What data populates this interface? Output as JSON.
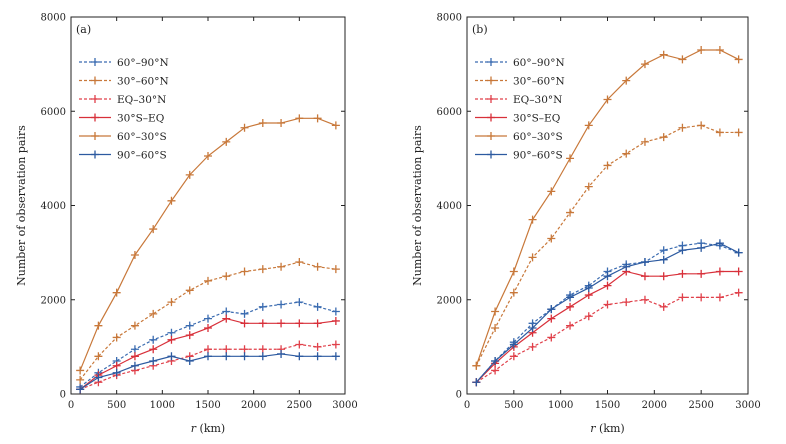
{
  "chart_data": [
    {
      "type": "line",
      "panel_label": "(a)",
      "xlabel_var": "r",
      "xlabel_unit": "(km)",
      "ylabel": "Number of observation pairs",
      "xlim": [
        0,
        3000
      ],
      "ylim": [
        0,
        8000
      ],
      "xticks": [
        0,
        500,
        1000,
        1500,
        2000,
        2500,
        3000
      ],
      "yticks": [
        0,
        2000,
        4000,
        6000,
        8000
      ],
      "x": [
        100,
        300,
        500,
        700,
        900,
        1100,
        1300,
        1500,
        1700,
        1900,
        2100,
        2300,
        2500,
        2700,
        2900
      ],
      "legend_position": "top-left",
      "series": [
        {
          "name": "60°–90°N",
          "color": "#3a6bb0",
          "dash": "dashed",
          "values": [
            150,
            450,
            700,
            950,
            1150,
            1300,
            1450,
            1600,
            1750,
            1700,
            1850,
            1900,
            1950,
            1850,
            1750
          ]
        },
        {
          "name": "30°–60°N",
          "color": "#c8783a",
          "dash": "dashed",
          "values": [
            300,
            800,
            1200,
            1450,
            1700,
            1950,
            2200,
            2400,
            2500,
            2600,
            2650,
            2700,
            2800,
            2700,
            2650
          ]
        },
        {
          "name": "EQ–30°N",
          "color": "#e0404a",
          "dash": "dashed",
          "values": [
            100,
            250,
            400,
            500,
            600,
            700,
            800,
            950,
            950,
            950,
            950,
            950,
            1050,
            1000,
            1050
          ]
        },
        {
          "name": "30°S–EQ",
          "color": "#d8303a",
          "dash": "solid",
          "values": [
            100,
            400,
            600,
            800,
            950,
            1150,
            1250,
            1400,
            1600,
            1500,
            1500,
            1500,
            1500,
            1500,
            1550
          ]
        },
        {
          "name": "60°–30°S",
          "color": "#c8783a",
          "dash": "solid",
          "values": [
            500,
            1450,
            2150,
            2950,
            3500,
            4100,
            4650,
            5050,
            5350,
            5650,
            5750,
            5750,
            5850,
            5850,
            5700
          ]
        },
        {
          "name": "90°–60°S",
          "color": "#2c5aa0",
          "dash": "solid",
          "values": [
            100,
            350,
            450,
            600,
            700,
            800,
            700,
            800,
            800,
            800,
            800,
            850,
            800,
            800,
            800
          ]
        }
      ]
    },
    {
      "type": "line",
      "panel_label": "(b)",
      "xlabel_var": "r",
      "xlabel_unit": "(km)",
      "ylabel": "Number of observation pairs",
      "xlim": [
        0,
        3000
      ],
      "ylim": [
        0,
        8000
      ],
      "xticks": [
        0,
        500,
        1000,
        1500,
        2000,
        2500,
        3000
      ],
      "yticks": [
        0,
        2000,
        4000,
        6000,
        8000
      ],
      "x": [
        100,
        300,
        500,
        700,
        900,
        1100,
        1300,
        1500,
        1700,
        1900,
        2100,
        2300,
        2500,
        2700,
        2900
      ],
      "legend_position": "top-left",
      "series": [
        {
          "name": "60°–90°N",
          "color": "#3a6bb0",
          "dash": "dashed",
          "values": [
            250,
            700,
            1100,
            1500,
            1800,
            2100,
            2300,
            2600,
            2750,
            2800,
            3050,
            3150,
            3200,
            3150,
            3000
          ]
        },
        {
          "name": "30°–60°N",
          "color": "#c8783a",
          "dash": "dashed",
          "values": [
            600,
            1400,
            2150,
            2900,
            3300,
            3850,
            4400,
            4850,
            5100,
            5350,
            5450,
            5650,
            5700,
            5550,
            5550
          ]
        },
        {
          "name": "EQ–30°N",
          "color": "#e0404a",
          "dash": "dashed",
          "values": [
            250,
            500,
            800,
            1000,
            1200,
            1450,
            1650,
            1900,
            1950,
            2000,
            1850,
            2050,
            2050,
            2050,
            2150
          ]
        },
        {
          "name": "30°S–EQ",
          "color": "#d8303a",
          "dash": "solid",
          "values": [
            250,
            650,
            1000,
            1300,
            1600,
            1850,
            2100,
            2300,
            2600,
            2500,
            2500,
            2550,
            2550,
            2600,
            2600
          ]
        },
        {
          "name": "60°–30°S",
          "color": "#c8783a",
          "dash": "solid",
          "values": [
            600,
            1750,
            2600,
            3700,
            4300,
            5000,
            5700,
            6250,
            6650,
            7000,
            7200,
            7100,
            7300,
            7300,
            7100
          ]
        },
        {
          "name": "90°–60°S",
          "color": "#2c5aa0",
          "dash": "solid",
          "values": [
            250,
            700,
            1050,
            1400,
            1800,
            2050,
            2250,
            2500,
            2700,
            2800,
            2850,
            3050,
            3100,
            3200,
            3000
          ]
        }
      ]
    }
  ]
}
